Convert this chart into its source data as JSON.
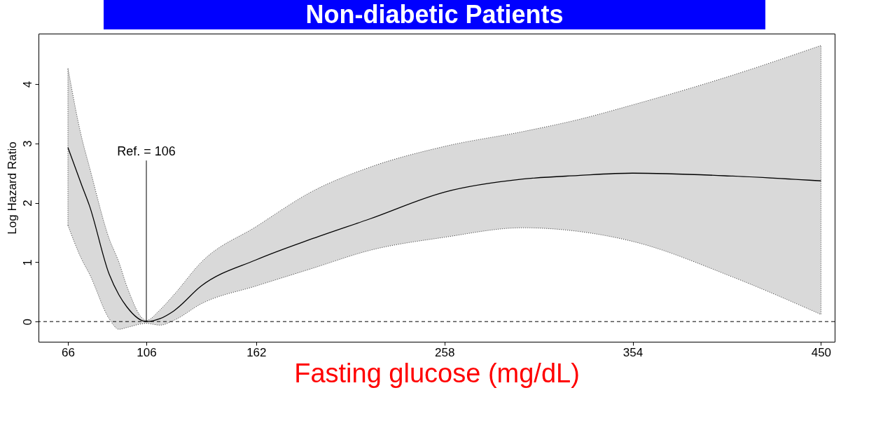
{
  "chart_data": {
    "type": "line",
    "title": "Non-diabetic Patients",
    "xlabel": "Fasting glucose (mg/dL)",
    "ylabel": "Log Hazard Ratio",
    "x": [
      66,
      73,
      77,
      87,
      92,
      96,
      106,
      113,
      120,
      134,
      162,
      191,
      220,
      258,
      298,
      326,
      354,
      405,
      450
    ],
    "series": [
      {
        "color": "#000000",
        "values": [
          2.93,
          2.3,
          1.95,
          0.8,
          0.45,
          0.25,
          0,
          0.05,
          0.18,
          0.6,
          1.04,
          1.4,
          1.73,
          2.18,
          2.4,
          2.46,
          2.5,
          2.45,
          2.37
        ],
        "upper": [
          4.27,
          3.1,
          2.6,
          1.4,
          1.0,
          0.6,
          0.02,
          0.2,
          0.45,
          1.0,
          1.6,
          2.2,
          2.6,
          2.95,
          3.2,
          3.4,
          3.65,
          4.15,
          4.65
        ],
        "lower": [
          1.62,
          1.05,
          0.8,
          0.05,
          -0.13,
          -0.1,
          -0.03,
          -0.06,
          0.02,
          0.3,
          0.6,
          0.9,
          1.2,
          1.42,
          1.58,
          1.52,
          1.35,
          0.75,
          0.12
        ]
      }
    ],
    "xlim": [
      51,
      457
    ],
    "ylim": [
      -0.34,
      4.85
    ],
    "xticks": [
      66,
      106,
      162,
      258,
      354,
      450
    ],
    "yticks": [
      0,
      1,
      2,
      3,
      4
    ],
    "ref_lines": [
      {
        "axis": "y",
        "value": 0,
        "line_style": "dashed",
        "color": "#000000"
      }
    ],
    "annotations": [
      {
        "text": "Ref. = 106",
        "x": 106,
        "y": 0
      }
    ],
    "grid": false
  }
}
